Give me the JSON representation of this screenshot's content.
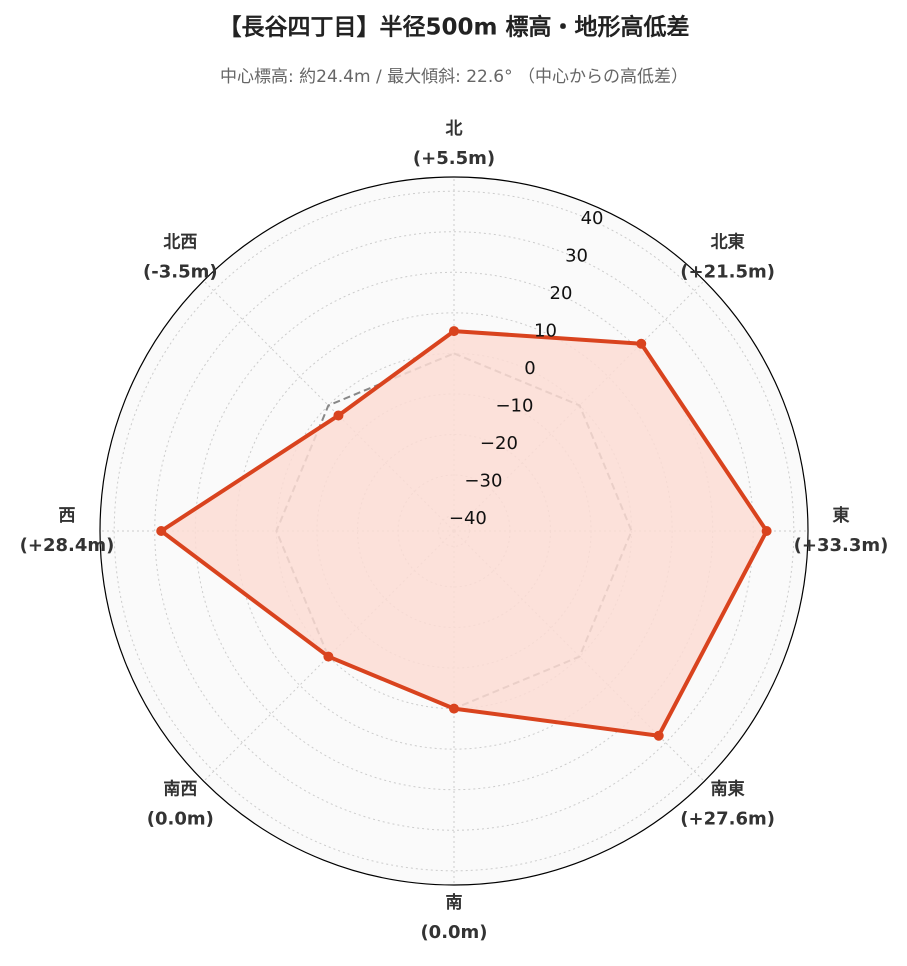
{
  "chart_data": {
    "type": "radar",
    "title": "【長谷四丁目】半径500m 標高・地形高低差",
    "subtitle": "中心標高: 約24.4m / 最大傾斜: 22.6° （中心からの高低差）",
    "categories": [
      "北",
      "北東",
      "東",
      "南東",
      "南",
      "南西",
      "西",
      "北西"
    ],
    "values": [
      5.5,
      21.5,
      33.3,
      27.6,
      0.0,
      0.0,
      28.4,
      -3.5
    ],
    "value_labels": [
      "(+5.5m)",
      "(+21.5m)",
      "(+33.3m)",
      "(+27.6m)",
      "(0.0m)",
      "(0.0m)",
      "(+28.4m)",
      "(-3.5m)"
    ],
    "color": "#d9431e",
    "fill": "#fbdcd3",
    "reference_line": 0,
    "ylim": [
      -43.8,
      43.5
    ],
    "yticks": [
      {
        "value": -40,
        "label": "−40"
      },
      {
        "value": -30,
        "label": "−30"
      },
      {
        "value": -20,
        "label": "−20"
      },
      {
        "value": -10,
        "label": "−10"
      },
      0,
      10,
      20,
      30,
      40
    ],
    "grid": true
  }
}
